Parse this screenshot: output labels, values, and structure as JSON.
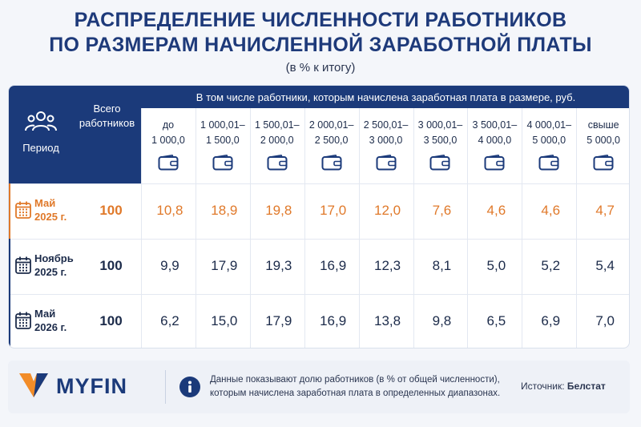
{
  "header": {
    "title_line1": "РАСПРЕДЕЛЕНИЕ ЧИСЛЕННОСТИ РАБОТНИКОВ",
    "title_line2": "ПО РАЗМЕРАМ НАЧИСЛЕННОЙ ЗАРАБОТНОЙ ПЛАТЫ",
    "subtitle": "(в % к итогу)"
  },
  "table": {
    "period_label": "Период",
    "total_label_1": "Всего",
    "total_label_2": "работников",
    "band_label": "В том числе работники, которым начислена заработная плата в размере, руб.",
    "ranges": [
      {
        "l1": "до",
        "l2": "1 000,0"
      },
      {
        "l1": "1 000,01–",
        "l2": "1 500,0"
      },
      {
        "l1": "1 500,01–",
        "l2": "2 000,0"
      },
      {
        "l1": "2 000,01–",
        "l2": "2 500,0"
      },
      {
        "l1": "2 500,01–",
        "l2": "3 000,0"
      },
      {
        "l1": "3 000,01–",
        "l2": "3 500,0"
      },
      {
        "l1": "3 500,01–",
        "l2": "4 000,0"
      },
      {
        "l1": "4 000,01–",
        "l2": "5 000,0"
      },
      {
        "l1": "свыше",
        "l2": "5 000,0"
      }
    ],
    "rows": [
      {
        "date1": "Май",
        "date2": "2025 г.",
        "total": "100",
        "values": [
          "10,8",
          "18,9",
          "19,8",
          "17,0",
          "12,0",
          "7,6",
          "4,6",
          "4,6",
          "4,7"
        ]
      },
      {
        "date1": "Ноябрь",
        "date2": "2025 г.",
        "total": "100",
        "values": [
          "9,9",
          "17,9",
          "19,3",
          "16,9",
          "12,3",
          "8,1",
          "5,0",
          "5,2",
          "5,4"
        ]
      },
      {
        "date1": "Май",
        "date2": "2026 г.",
        "total": "100",
        "values": [
          "6,2",
          "15,0",
          "17,9",
          "16,9",
          "13,8",
          "9,8",
          "6,5",
          "6,9",
          "7,0"
        ]
      }
    ]
  },
  "footer": {
    "logo": "MYFIN",
    "note_line1": "Данные показывают долю работников (в % от общей численности),",
    "note_line2": "которым начислена заработная плата в определенных диапазонах.",
    "source_label": "Источник:",
    "source_value": "Белстат"
  },
  "colors": {
    "brand_navy": "#1b3a7a",
    "highlight_orange": "#e0792a",
    "text_dark": "#1c2b4a",
    "logo_orange": "#f28c28"
  },
  "icons": [
    "people-icon",
    "wallet-icon",
    "calendar-icon",
    "info-icon",
    "myfin-logo-icon"
  ]
}
